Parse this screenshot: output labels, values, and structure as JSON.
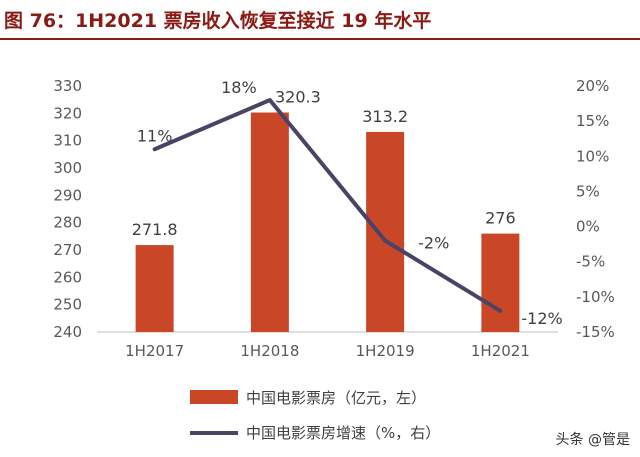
{
  "title": "图 76：1H2021 票房收入恢复至接近 19 年水平",
  "watermark": "头条 @管是",
  "colors": {
    "bar": "#c94726",
    "line": "#4b4366",
    "title": "#8c1a14",
    "axis": "#bfbfbf"
  },
  "chart_data": {
    "type": "bar+line",
    "categories": [
      "1H2017",
      "1H2018",
      "1H2019",
      "1H2021"
    ],
    "series": [
      {
        "name": "中国电影票房（亿元，左）",
        "type": "bar",
        "axis": "left",
        "values": [
          271.8,
          320.3,
          313.2,
          276
        ],
        "labels": [
          "271.8",
          "320.3",
          "313.2",
          "276"
        ]
      },
      {
        "name": "中国电影票房增速（%，右）",
        "type": "line",
        "axis": "right",
        "values": [
          11,
          18,
          -2,
          -12
        ],
        "labels": [
          "11%",
          "18%",
          "-2%",
          "-12%"
        ]
      }
    ],
    "y_left": {
      "min": 240,
      "max": 330,
      "step": 10,
      "ticks": [
        "240",
        "250",
        "260",
        "270",
        "280",
        "290",
        "300",
        "310",
        "320",
        "330"
      ]
    },
    "y_right": {
      "min": -15,
      "max": 20,
      "step": 5,
      "ticks": [
        "-15%",
        "-10%",
        "-5%",
        "0%",
        "5%",
        "10%",
        "15%",
        "20%"
      ]
    },
    "legend_position": "bottom-center",
    "grid": false
  }
}
